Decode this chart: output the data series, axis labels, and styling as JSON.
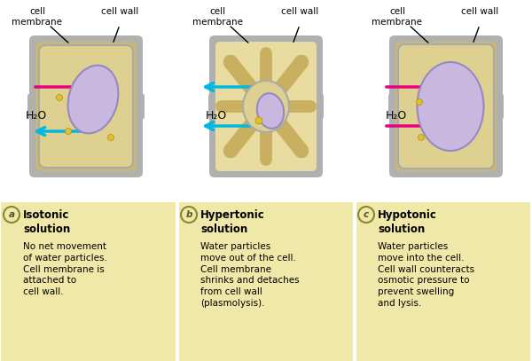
{
  "background_color": "#ffffff",
  "panel_bg": "#f0e8a8",
  "cell_wall_color": "#b0b0b0",
  "cell_wall_inner": "#c8b878",
  "cytoplasm_color": "#ddd090",
  "nucleus_color_a": "#c8b8e0",
  "nucleus_color_b": "#c8b8e0",
  "nucleus_color_c": "#c8b8e0",
  "arrow_pink": "#e8007f",
  "arrow_cyan": "#00b8e0",
  "label_color": "#000000",
  "title_a": "Isotonic\nsolution",
  "title_b": "Hypertonic\nsolution",
  "title_c": "Hypotonic\nsolution",
  "desc_a": "No net movement\nof water particles.\nCell membrane is\nattached to\ncell wall.",
  "desc_b": "Water particles\nmove out of the cell.\nCell membrane\nshrinks and detaches\nfrom cell wall\n(plasmolysis).",
  "desc_c": "Water particles\nmove into the cell.\nCell wall counteracts\nosmotic pressure to\nprevent swelling\nand lysis.",
  "label_membrane": "cell\nmembrane",
  "label_wall": "cell wall",
  "h2o_label": "H₂O",
  "figsize": [
    6.0,
    4.07
  ],
  "dpi": 100
}
